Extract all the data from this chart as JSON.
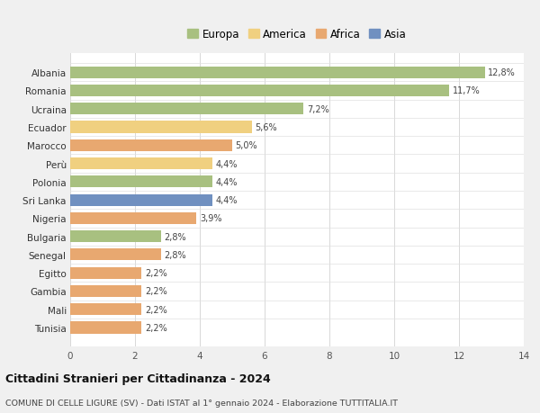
{
  "categories": [
    "Albania",
    "Romania",
    "Ucraina",
    "Ecuador",
    "Marocco",
    "Perù",
    "Polonia",
    "Sri Lanka",
    "Nigeria",
    "Bulgaria",
    "Senegal",
    "Egitto",
    "Gambia",
    "Mali",
    "Tunisia"
  ],
  "values": [
    12.8,
    11.7,
    7.2,
    5.6,
    5.0,
    4.4,
    4.4,
    4.4,
    3.9,
    2.8,
    2.8,
    2.2,
    2.2,
    2.2,
    2.2
  ],
  "colors": [
    "#a8c080",
    "#a8c080",
    "#a8c080",
    "#f0d080",
    "#e8a870",
    "#f0d080",
    "#a8c080",
    "#7090c0",
    "#e8a870",
    "#a8c080",
    "#e8a870",
    "#e8a870",
    "#e8a870",
    "#e8a870",
    "#e8a870"
  ],
  "legend": [
    {
      "label": "Europa",
      "color": "#a8c080"
    },
    {
      "label": "America",
      "color": "#f0d080"
    },
    {
      "label": "Africa",
      "color": "#e8a870"
    },
    {
      "label": "Asia",
      "color": "#7090c0"
    }
  ],
  "xlim": [
    0,
    14
  ],
  "xticks": [
    0,
    2,
    4,
    6,
    8,
    10,
    12,
    14
  ],
  "title": "Cittadini Stranieri per Cittadinanza - 2024",
  "subtitle": "COMUNE DI CELLE LIGURE (SV) - Dati ISTAT al 1° gennaio 2024 - Elaborazione TUTTITALIA.IT",
  "bg_color": "#f0f0f0",
  "plot_bg_color": "#ffffff",
  "bar_height": 0.65
}
